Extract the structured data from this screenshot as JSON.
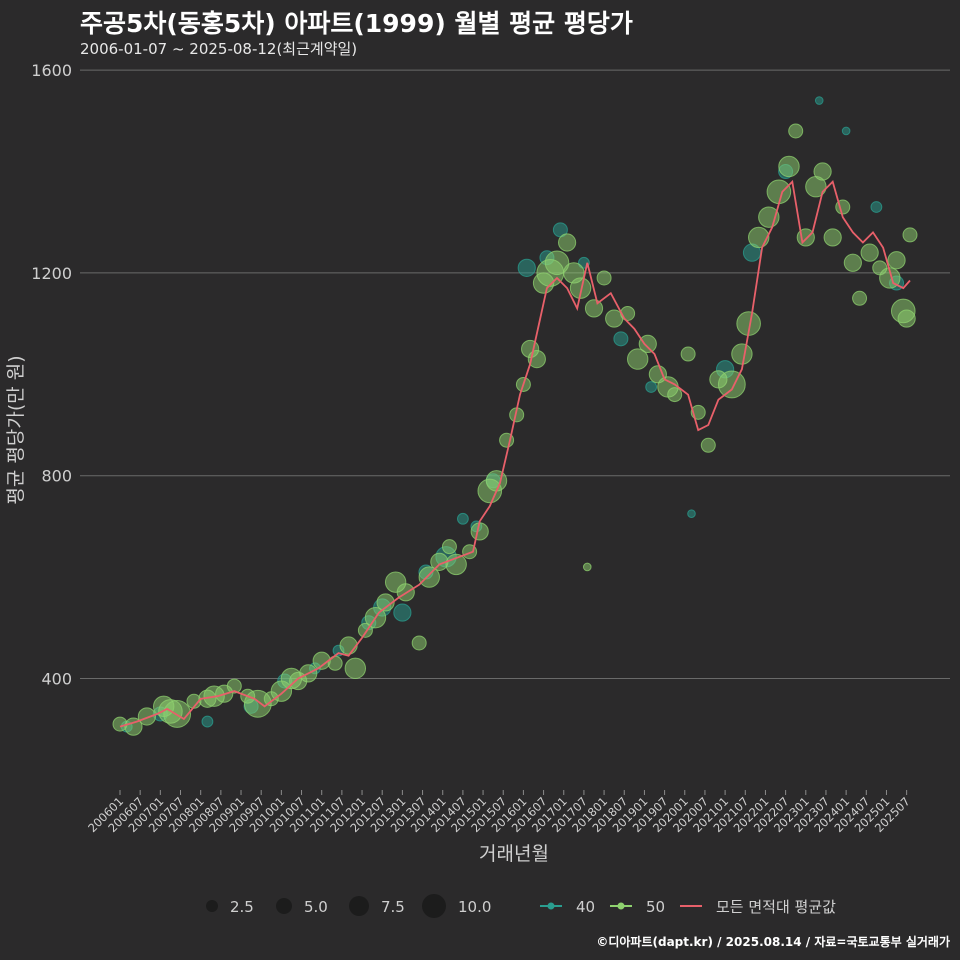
{
  "title": "주공5차(동홍5차) 아파트(1999) 월별 평균 평당가",
  "subtitle": "2006-01-07 ~ 2025-08-12(최근계약일)",
  "footer": "©디아파트(dapt.kr) / 2025.08.14 / 자료=국토교통부 실거래가",
  "colors": {
    "background": "#2b2a2b",
    "grid": "#6a6a6a",
    "series_40": "#2a9d8f",
    "series_50": "#8fd26f",
    "avg_line": "#e8606a"
  },
  "chart_data": {
    "type": "scatter",
    "xlabel": "거래년월",
    "ylabel": "평균 평당가(만 원)",
    "ylim": [
      180,
      1620
    ],
    "xlim": [
      "2006-01",
      "2025-08"
    ],
    "y_ticks": [
      400,
      800,
      1200,
      1600
    ],
    "x_ticks": [
      "200601",
      "200607",
      "200701",
      "200707",
      "200801",
      "200807",
      "200901",
      "200907",
      "201001",
      "201007",
      "201101",
      "201107",
      "201201",
      "201207",
      "201301",
      "201307",
      "201401",
      "201407",
      "201501",
      "201507",
      "201601",
      "201607",
      "201701",
      "201707",
      "201801",
      "201807",
      "201901",
      "201907",
      "202001",
      "202007",
      "202101",
      "202107",
      "202201",
      "202207",
      "202301",
      "202307",
      "202401",
      "202407",
      "202501",
      "202507"
    ],
    "grid": true,
    "legend_position": "bottom",
    "size_legend": {
      "values": [
        "2.5",
        "5.0",
        "7.5",
        "10.0"
      ]
    },
    "series": [
      {
        "name": "40",
        "color": "#2a9d8f",
        "points": [
          {
            "x": "2006-03",
            "y": 305,
            "s": 2
          },
          {
            "x": "2007-01",
            "y": 330,
            "s": 3
          },
          {
            "x": "2008-03",
            "y": 315,
            "s": 2
          },
          {
            "x": "2009-04",
            "y": 345,
            "s": 3
          },
          {
            "x": "2010-02",
            "y": 395,
            "s": 3
          },
          {
            "x": "2010-11",
            "y": 420,
            "s": 2
          },
          {
            "x": "2011-06",
            "y": 455,
            "s": 2
          },
          {
            "x": "2012-03",
            "y": 510,
            "s": 3
          },
          {
            "x": "2012-07",
            "y": 540,
            "s": 4
          },
          {
            "x": "2013-01",
            "y": 530,
            "s": 4
          },
          {
            "x": "2013-08",
            "y": 610,
            "s": 3
          },
          {
            "x": "2014-02",
            "y": 640,
            "s": 5
          },
          {
            "x": "2014-07",
            "y": 715,
            "s": 2
          },
          {
            "x": "2014-11",
            "y": 700,
            "s": 2
          },
          {
            "x": "2015-04",
            "y": 790,
            "s": 3
          },
          {
            "x": "2016-02",
            "y": 1210,
            "s": 4
          },
          {
            "x": "2016-08",
            "y": 1230,
            "s": 3
          },
          {
            "x": "2016-12",
            "y": 1285,
            "s": 3
          },
          {
            "x": "2017-07",
            "y": 1220,
            "s": 2
          },
          {
            "x": "2018-06",
            "y": 1070,
            "s": 3
          },
          {
            "x": "2019-03",
            "y": 975,
            "s": 2
          },
          {
            "x": "2020-03",
            "y": 725,
            "s": 1
          },
          {
            "x": "2021-01",
            "y": 1010,
            "s": 4
          },
          {
            "x": "2021-09",
            "y": 1240,
            "s": 4
          },
          {
            "x": "2022-07",
            "y": 1400,
            "s": 3
          },
          {
            "x": "2023-05",
            "y": 1540,
            "s": 1
          },
          {
            "x": "2024-01",
            "y": 1480,
            "s": 1
          },
          {
            "x": "2024-10",
            "y": 1330,
            "s": 2
          },
          {
            "x": "2025-04",
            "y": 1180,
            "s": 3
          }
        ]
      },
      {
        "name": "50",
        "color": "#8fd26f",
        "points": [
          {
            "x": "2006-01",
            "y": 310,
            "s": 3
          },
          {
            "x": "2006-05",
            "y": 305,
            "s": 4
          },
          {
            "x": "2006-09",
            "y": 325,
            "s": 4
          },
          {
            "x": "2007-02",
            "y": 345,
            "s": 5
          },
          {
            "x": "2007-04",
            "y": 335,
            "s": 6
          },
          {
            "x": "2007-06",
            "y": 330,
            "s": 7
          },
          {
            "x": "2007-11",
            "y": 355,
            "s": 3
          },
          {
            "x": "2008-03",
            "y": 360,
            "s": 4
          },
          {
            "x": "2008-05",
            "y": 365,
            "s": 5
          },
          {
            "x": "2008-08",
            "y": 370,
            "s": 4
          },
          {
            "x": "2008-11",
            "y": 385,
            "s": 3
          },
          {
            "x": "2009-03",
            "y": 365,
            "s": 3
          },
          {
            "x": "2009-06",
            "y": 350,
            "s": 7
          },
          {
            "x": "2009-10",
            "y": 360,
            "s": 3
          },
          {
            "x": "2010-01",
            "y": 375,
            "s": 5
          },
          {
            "x": "2010-04",
            "y": 400,
            "s": 5
          },
          {
            "x": "2010-06",
            "y": 395,
            "s": 4
          },
          {
            "x": "2010-09",
            "y": 410,
            "s": 4
          },
          {
            "x": "2011-01",
            "y": 435,
            "s": 4
          },
          {
            "x": "2011-05",
            "y": 430,
            "s": 3
          },
          {
            "x": "2011-09",
            "y": 465,
            "s": 4
          },
          {
            "x": "2011-11",
            "y": 420,
            "s": 5
          },
          {
            "x": "2012-02",
            "y": 495,
            "s": 3
          },
          {
            "x": "2012-05",
            "y": 520,
            "s": 5
          },
          {
            "x": "2012-08",
            "y": 550,
            "s": 4
          },
          {
            "x": "2012-11",
            "y": 590,
            "s": 5
          },
          {
            "x": "2013-02",
            "y": 570,
            "s": 4
          },
          {
            "x": "2013-06",
            "y": 470,
            "s": 3
          },
          {
            "x": "2013-09",
            "y": 600,
            "s": 5
          },
          {
            "x": "2013-12",
            "y": 630,
            "s": 4
          },
          {
            "x": "2014-03",
            "y": 660,
            "s": 3
          },
          {
            "x": "2014-05",
            "y": 625,
            "s": 5
          },
          {
            "x": "2014-09",
            "y": 650,
            "s": 3
          },
          {
            "x": "2014-12",
            "y": 690,
            "s": 4
          },
          {
            "x": "2015-03",
            "y": 770,
            "s": 6
          },
          {
            "x": "2015-05",
            "y": 790,
            "s": 5
          },
          {
            "x": "2015-08",
            "y": 870,
            "s": 3
          },
          {
            "x": "2015-11",
            "y": 920,
            "s": 3
          },
          {
            "x": "2016-01",
            "y": 980,
            "s": 3
          },
          {
            "x": "2016-03",
            "y": 1050,
            "s": 4
          },
          {
            "x": "2016-05",
            "y": 1030,
            "s": 4
          },
          {
            "x": "2016-07",
            "y": 1180,
            "s": 5
          },
          {
            "x": "2016-09",
            "y": 1200,
            "s": 7
          },
          {
            "x": "2016-11",
            "y": 1220,
            "s": 6
          },
          {
            "x": "2017-02",
            "y": 1260,
            "s": 4
          },
          {
            "x": "2017-04",
            "y": 1200,
            "s": 5
          },
          {
            "x": "2017-06",
            "y": 1170,
            "s": 5
          },
          {
            "x": "2017-08",
            "y": 620,
            "s": 1
          },
          {
            "x": "2017-10",
            "y": 1130,
            "s": 4
          },
          {
            "x": "2018-01",
            "y": 1190,
            "s": 3
          },
          {
            "x": "2018-04",
            "y": 1110,
            "s": 4
          },
          {
            "x": "2018-08",
            "y": 1120,
            "s": 3
          },
          {
            "x": "2018-11",
            "y": 1030,
            "s": 5
          },
          {
            "x": "2019-02",
            "y": 1060,
            "s": 4
          },
          {
            "x": "2019-05",
            "y": 1000,
            "s": 4
          },
          {
            "x": "2019-08",
            "y": 975,
            "s": 5
          },
          {
            "x": "2019-10",
            "y": 960,
            "s": 3
          },
          {
            "x": "2020-02",
            "y": 1040,
            "s": 3
          },
          {
            "x": "2020-05",
            "y": 925,
            "s": 3
          },
          {
            "x": "2020-08",
            "y": 860,
            "s": 3
          },
          {
            "x": "2020-11",
            "y": 990,
            "s": 4
          },
          {
            "x": "2021-03",
            "y": 980,
            "s": 7
          },
          {
            "x": "2021-06",
            "y": 1040,
            "s": 5
          },
          {
            "x": "2021-08",
            "y": 1100,
            "s": 6
          },
          {
            "x": "2021-11",
            "y": 1270,
            "s": 5
          },
          {
            "x": "2022-02",
            "y": 1310,
            "s": 5
          },
          {
            "x": "2022-05",
            "y": 1360,
            "s": 6
          },
          {
            "x": "2022-08",
            "y": 1410,
            "s": 5
          },
          {
            "x": "2022-10",
            "y": 1480,
            "s": 3
          },
          {
            "x": "2023-01",
            "y": 1270,
            "s": 4
          },
          {
            "x": "2023-04",
            "y": 1370,
            "s": 5
          },
          {
            "x": "2023-06",
            "y": 1400,
            "s": 4
          },
          {
            "x": "2023-09",
            "y": 1270,
            "s": 4
          },
          {
            "x": "2023-12",
            "y": 1330,
            "s": 3
          },
          {
            "x": "2024-03",
            "y": 1220,
            "s": 4
          },
          {
            "x": "2024-05",
            "y": 1150,
            "s": 3
          },
          {
            "x": "2024-08",
            "y": 1240,
            "s": 4
          },
          {
            "x": "2024-11",
            "y": 1210,
            "s": 3
          },
          {
            "x": "2025-02",
            "y": 1190,
            "s": 5
          },
          {
            "x": "2025-04",
            "y": 1225,
            "s": 4
          },
          {
            "x": "2025-06",
            "y": 1125,
            "s": 6
          },
          {
            "x": "2025-07",
            "y": 1110,
            "s": 4
          },
          {
            "x": "2025-08",
            "y": 1275,
            "s": 3
          }
        ]
      },
      {
        "name": "모든 면적대 평균값",
        "color": "#e8606a",
        "type": "line",
        "points": [
          {
            "x": "2006-01",
            "y": 305
          },
          {
            "x": "2006-06",
            "y": 315
          },
          {
            "x": "2006-12",
            "y": 330
          },
          {
            "x": "2007-03",
            "y": 340
          },
          {
            "x": "2007-08",
            "y": 320
          },
          {
            "x": "2008-01",
            "y": 360
          },
          {
            "x": "2008-06",
            "y": 365
          },
          {
            "x": "2008-11",
            "y": 375
          },
          {
            "x": "2009-05",
            "y": 360
          },
          {
            "x": "2009-08",
            "y": 345
          },
          {
            "x": "2010-01",
            "y": 370
          },
          {
            "x": "2010-06",
            "y": 400
          },
          {
            "x": "2010-12",
            "y": 420
          },
          {
            "x": "2011-06",
            "y": 450
          },
          {
            "x": "2011-09",
            "y": 445
          },
          {
            "x": "2012-01",
            "y": 480
          },
          {
            "x": "2012-06",
            "y": 530
          },
          {
            "x": "2012-12",
            "y": 560
          },
          {
            "x": "2013-06",
            "y": 585
          },
          {
            "x": "2013-12",
            "y": 625
          },
          {
            "x": "2014-06",
            "y": 640
          },
          {
            "x": "2014-10",
            "y": 650
          },
          {
            "x": "2014-12",
            "y": 710
          },
          {
            "x": "2015-03",
            "y": 740
          },
          {
            "x": "2015-06",
            "y": 785
          },
          {
            "x": "2015-09",
            "y": 870
          },
          {
            "x": "2015-12",
            "y": 960
          },
          {
            "x": "2016-03",
            "y": 1020
          },
          {
            "x": "2016-06",
            "y": 1110
          },
          {
            "x": "2016-08",
            "y": 1170
          },
          {
            "x": "2016-11",
            "y": 1190
          },
          {
            "x": "2017-02",
            "y": 1170
          },
          {
            "x": "2017-05",
            "y": 1130
          },
          {
            "x": "2017-08",
            "y": 1220
          },
          {
            "x": "2017-11",
            "y": 1140
          },
          {
            "x": "2018-03",
            "y": 1160
          },
          {
            "x": "2018-07",
            "y": 1110
          },
          {
            "x": "2018-10",
            "y": 1090
          },
          {
            "x": "2019-01",
            "y": 1060
          },
          {
            "x": "2019-04",
            "y": 1040
          },
          {
            "x": "2019-07",
            "y": 990
          },
          {
            "x": "2019-10",
            "y": 980
          },
          {
            "x": "2020-02",
            "y": 960
          },
          {
            "x": "2020-05",
            "y": 890
          },
          {
            "x": "2020-08",
            "y": 900
          },
          {
            "x": "2020-11",
            "y": 950
          },
          {
            "x": "2021-03",
            "y": 970
          },
          {
            "x": "2021-06",
            "y": 1010
          },
          {
            "x": "2021-09",
            "y": 1120
          },
          {
            "x": "2021-12",
            "y": 1250
          },
          {
            "x": "2022-03",
            "y": 1290
          },
          {
            "x": "2022-06",
            "y": 1360
          },
          {
            "x": "2022-09",
            "y": 1380
          },
          {
            "x": "2022-12",
            "y": 1260
          },
          {
            "x": "2023-03",
            "y": 1280
          },
          {
            "x": "2023-06",
            "y": 1360
          },
          {
            "x": "2023-09",
            "y": 1380
          },
          {
            "x": "2023-12",
            "y": 1310
          },
          {
            "x": "2024-03",
            "y": 1280
          },
          {
            "x": "2024-06",
            "y": 1260
          },
          {
            "x": "2024-09",
            "y": 1280
          },
          {
            "x": "2024-12",
            "y": 1250
          },
          {
            "x": "2025-03",
            "y": 1180
          },
          {
            "x": "2025-06",
            "y": 1170
          },
          {
            "x": "2025-08",
            "y": 1185
          }
        ]
      }
    ]
  }
}
